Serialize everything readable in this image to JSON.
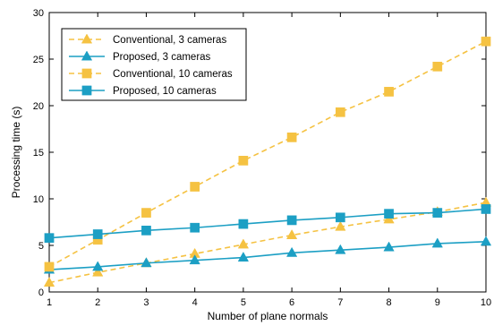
{
  "chart_data": {
    "type": "line",
    "title": "",
    "xlabel": "Number of plane normals",
    "ylabel": "Processing time (s)",
    "xlim": [
      1,
      10
    ],
    "ylim": [
      0,
      30
    ],
    "xticks": [
      1,
      2,
      3,
      4,
      5,
      6,
      7,
      8,
      9,
      10
    ],
    "yticks": [
      0,
      5,
      10,
      15,
      20,
      25,
      30
    ],
    "grid": false,
    "legend_position": "top-left",
    "x": [
      1,
      2,
      3,
      4,
      5,
      6,
      7,
      8,
      9,
      10
    ],
    "series": [
      {
        "name": "Conventional, 3 cameras",
        "color": "#f5c242",
        "line_style": "dashed",
        "marker": "triangle",
        "values": [
          1.0,
          2.1,
          3.1,
          4.1,
          5.1,
          6.1,
          7.0,
          7.8,
          8.6,
          9.6
        ]
      },
      {
        "name": "Proposed, 3 cameras",
        "color": "#1c9fc4",
        "line_style": "solid",
        "marker": "triangle",
        "values": [
          2.4,
          2.7,
          3.1,
          3.4,
          3.7,
          4.2,
          4.5,
          4.8,
          5.2,
          5.4
        ]
      },
      {
        "name": "Conventional, 10 cameras",
        "color": "#f5c242",
        "line_style": "dashed",
        "marker": "square",
        "values": [
          2.7,
          5.6,
          8.5,
          11.3,
          14.1,
          16.6,
          19.3,
          21.5,
          24.2,
          26.9
        ]
      },
      {
        "name": "Proposed, 10 cameras",
        "color": "#1c9fc4",
        "line_style": "solid",
        "marker": "square",
        "values": [
          5.8,
          6.2,
          6.6,
          6.9,
          7.3,
          7.7,
          8.0,
          8.4,
          8.5,
          8.9
        ]
      }
    ]
  }
}
